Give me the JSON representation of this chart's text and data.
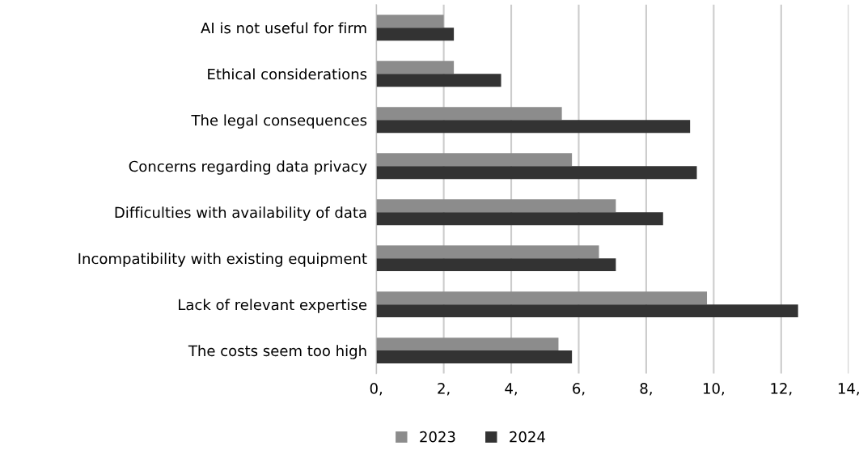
{
  "chart_data": {
    "type": "bar",
    "orientation": "horizontal",
    "categories": [
      "AI is not useful for firm",
      "Ethical considerations",
      "The legal consequences",
      "Concerns regarding data privacy",
      "Difficulties with availability of data",
      "Incompatibility with existing equipment",
      "Lack of relevant expertise",
      "The costs seem too high"
    ],
    "series": [
      {
        "name": "2023",
        "color": "#8c8c8c",
        "values": [
          2.0,
          2.3,
          5.5,
          5.8,
          7.1,
          6.6,
          9.8,
          5.4
        ]
      },
      {
        "name": "2024",
        "color": "#333333",
        "values": [
          2.3,
          3.7,
          9.3,
          9.5,
          8.5,
          7.1,
          12.5,
          5.8
        ]
      }
    ],
    "xlim": [
      0,
      14
    ],
    "xticks": [
      {
        "value": 0,
        "label": "0,"
      },
      {
        "value": 2,
        "label": "2,"
      },
      {
        "value": 4,
        "label": "4,"
      },
      {
        "value": 6,
        "label": "6,"
      },
      {
        "value": 8,
        "label": "8,"
      },
      {
        "value": 10,
        "label": "10,"
      },
      {
        "value": 12,
        "label": "12,"
      },
      {
        "value": 14,
        "label": "14,"
      }
    ],
    "grid": "x",
    "legend": "bottom"
  }
}
